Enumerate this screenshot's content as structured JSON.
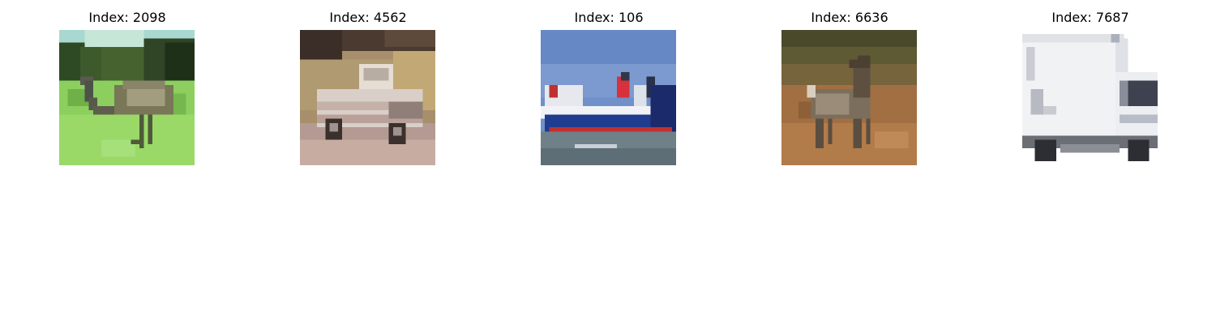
{
  "panels": [
    {
      "title": "Index: 2098",
      "subject": "ostrich-in-grass"
    },
    {
      "title": "Index: 4562",
      "subject": "pickup-truck"
    },
    {
      "title": "Index: 106",
      "subject": "cargo-ship"
    },
    {
      "title": "Index: 6636",
      "subject": "deer-in-field"
    },
    {
      "title": "Index: 7687",
      "subject": "white-box-truck"
    }
  ]
}
